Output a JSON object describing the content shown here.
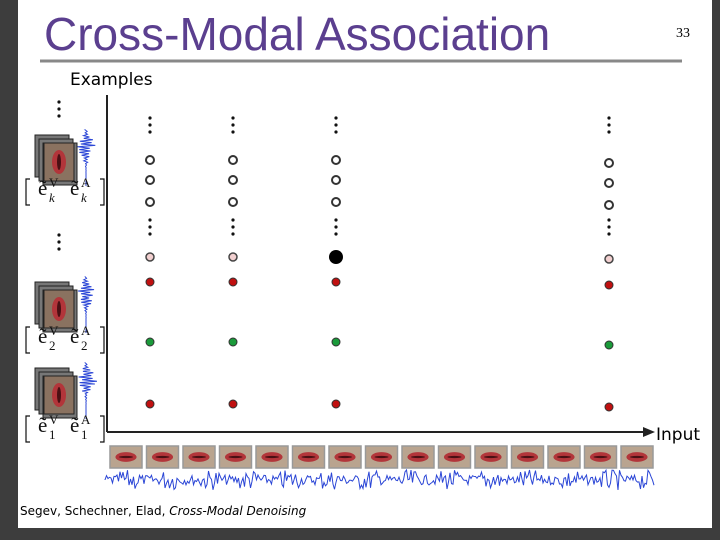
{
  "header": {
    "title": "Cross-Modal Association",
    "page_number": "33"
  },
  "labels": {
    "examples": "Examples",
    "input": "Input"
  },
  "vectors": {
    "symbol": "ẽ",
    "video": "V",
    "audio": "A",
    "indices": [
      "k",
      "2",
      "1"
    ]
  },
  "footer": {
    "authors": "Segev, Schechner, Elad,",
    "work": "Cross-Modal Denoising"
  }
}
